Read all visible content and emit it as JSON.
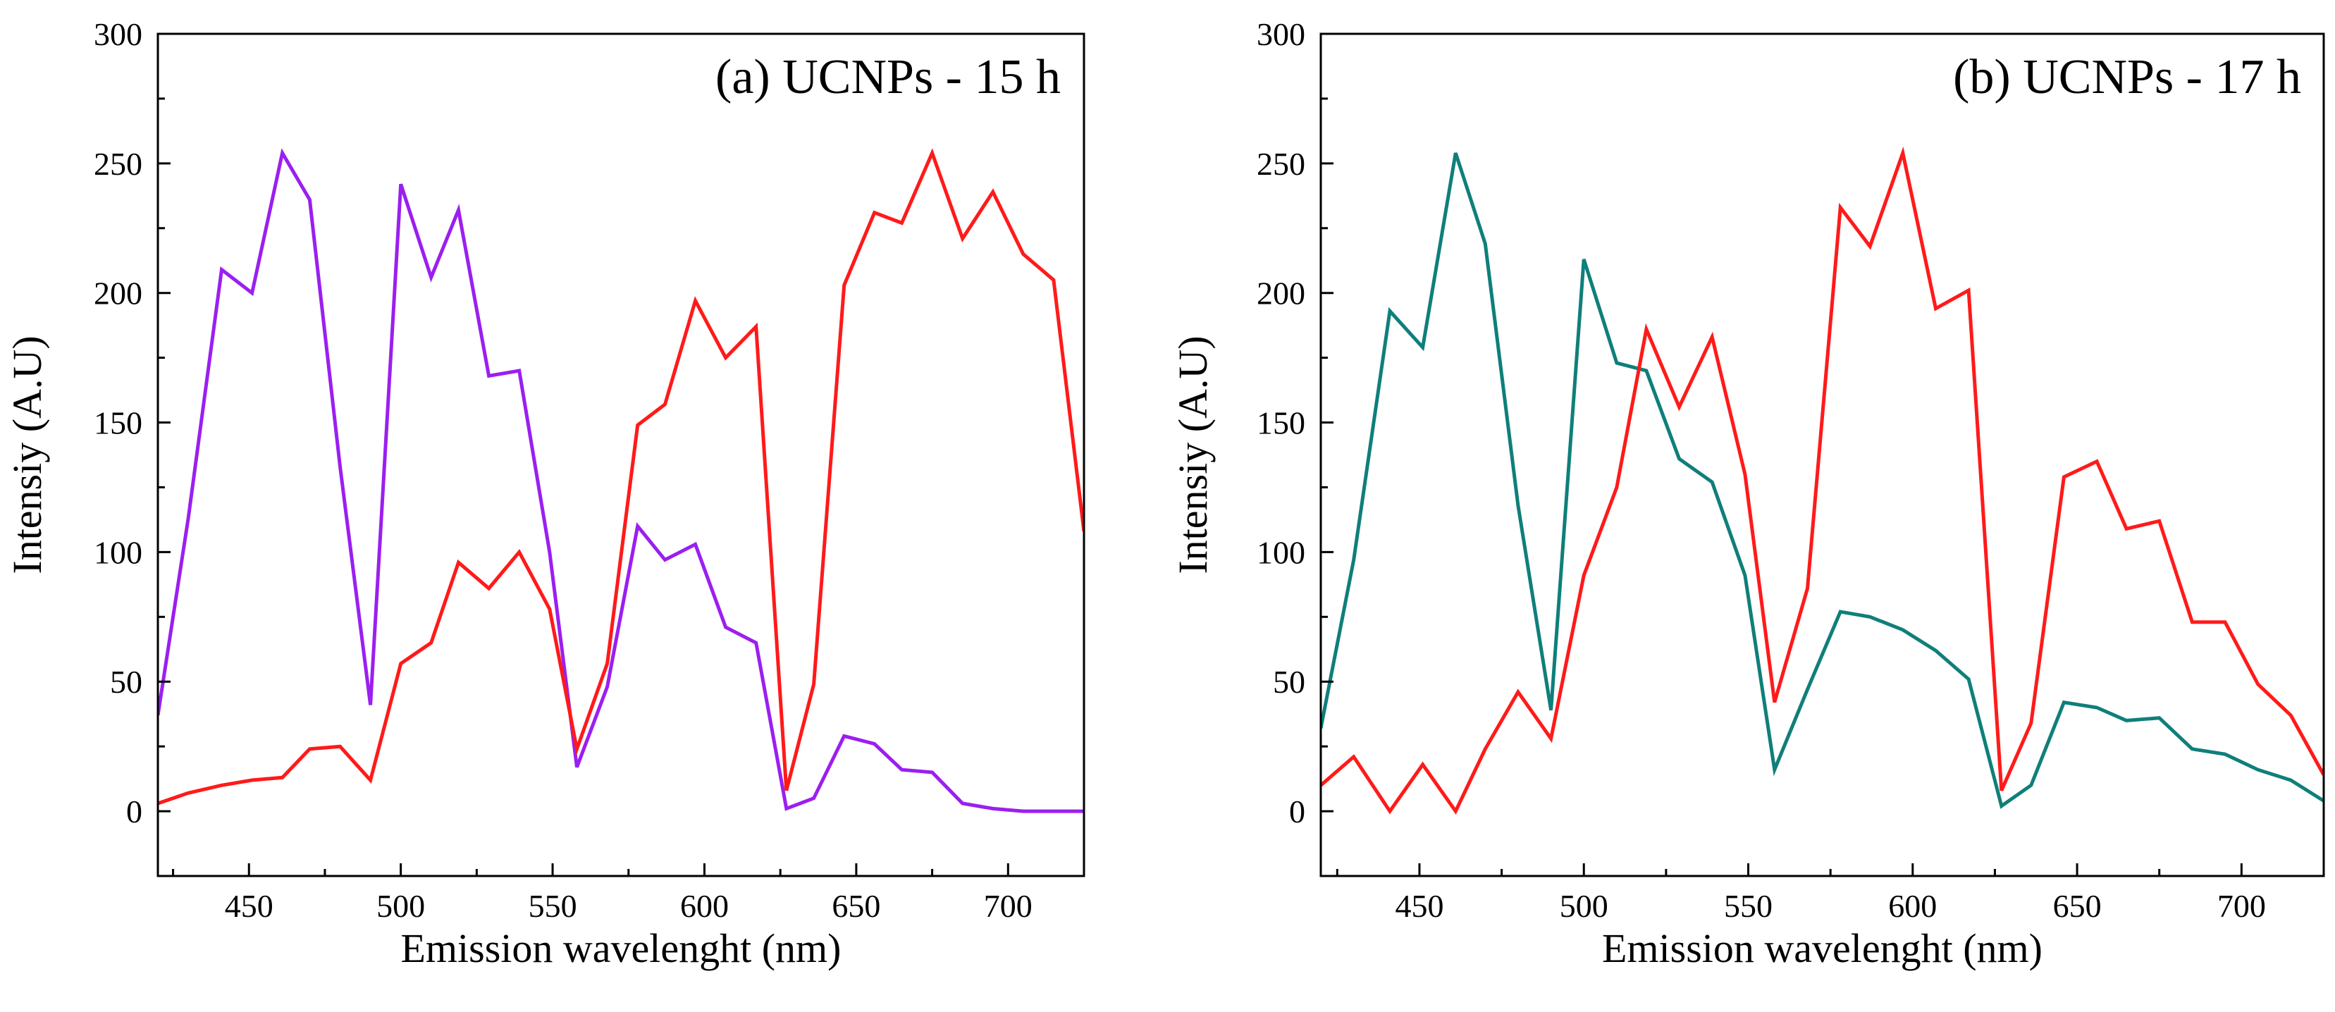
{
  "chart_data": [
    {
      "type": "line",
      "title": "(a) UCNPs - 15 h",
      "xlabel": "Emission wavelenght (nm)",
      "ylabel": "Intensiy (A.U)",
      "xlim": [
        420,
        725
      ],
      "ylim": [
        -25,
        300
      ],
      "xticks": [
        450,
        500,
        550,
        600,
        650,
        700
      ],
      "yticks": [
        0,
        50,
        100,
        150,
        200,
        250,
        300
      ],
      "tick_labels_x": [
        "450",
        "500",
        "550",
        "600",
        "650",
        "700"
      ],
      "tick_labels_y": [
        "0",
        "50",
        "100",
        "150",
        "200",
        "250",
        "300"
      ],
      "series": [
        {
          "name": "violet",
          "color": "#9b1ff0",
          "x": [
            420,
            430,
            441,
            451,
            461,
            470,
            480,
            490,
            500,
            510,
            519,
            529,
            539,
            549,
            558,
            568,
            578,
            587,
            597,
            607,
            617,
            627,
            636,
            646,
            656,
            665,
            675,
            685,
            695,
            705,
            715,
            725
          ],
          "y": [
            37,
            113,
            209,
            200,
            254,
            236,
            133,
            41,
            242,
            206,
            232,
            168,
            170,
            100,
            17,
            48,
            110,
            97,
            103,
            71,
            65,
            1,
            5,
            29,
            26,
            16,
            15,
            3,
            1,
            0,
            0,
            0
          ]
        },
        {
          "name": "red",
          "color": "#ff1a1a",
          "x": [
            420,
            430,
            441,
            451,
            461,
            470,
            480,
            490,
            500,
            510,
            519,
            529,
            539,
            549,
            558,
            568,
            578,
            587,
            597,
            607,
            617,
            627,
            636,
            646,
            656,
            665,
            675,
            685,
            695,
            705,
            715,
            725
          ],
          "y": [
            3,
            7,
            10,
            12,
            13,
            24,
            25,
            12,
            57,
            65,
            96,
            86,
            100,
            78,
            24,
            57,
            149,
            157,
            197,
            175,
            187,
            8,
            49,
            203,
            231,
            227,
            254,
            221,
            239,
            215,
            205,
            108
          ]
        }
      ]
    },
    {
      "type": "line",
      "title": "(b) UCNPs - 17 h",
      "xlabel": "Emission wavelenght (nm)",
      "ylabel": "Intensiy (A.U)",
      "xlim": [
        420,
        725
      ],
      "ylim": [
        -25,
        300
      ],
      "xticks": [
        450,
        500,
        550,
        600,
        650,
        700
      ],
      "yticks": [
        0,
        50,
        100,
        150,
        200,
        250,
        300
      ],
      "tick_labels_x": [
        "450",
        "500",
        "550",
        "600",
        "650",
        "700"
      ],
      "tick_labels_y": [
        "0",
        "50",
        "100",
        "150",
        "200",
        "250",
        "300"
      ],
      "series": [
        {
          "name": "teal",
          "color": "#0f7f7a",
          "x": [
            420,
            430,
            441,
            451,
            461,
            470,
            480,
            490,
            500,
            510,
            519,
            529,
            539,
            549,
            558,
            568,
            578,
            587,
            597,
            607,
            617,
            627,
            636,
            646,
            656,
            665,
            675,
            685,
            695,
            705,
            715,
            725
          ],
          "y": [
            32,
            97,
            193,
            179,
            254,
            219,
            118,
            39,
            213,
            173,
            170,
            136,
            127,
            91,
            16,
            47,
            77,
            75,
            70,
            62,
            51,
            2,
            10,
            42,
            40,
            35,
            36,
            24,
            22,
            16,
            12,
            4
          ]
        },
        {
          "name": "red",
          "color": "#ff1a1a",
          "x": [
            420,
            430,
            441,
            451,
            461,
            470,
            480,
            490,
            500,
            510,
            519,
            529,
            539,
            549,
            558,
            568,
            578,
            587,
            597,
            607,
            617,
            627,
            636,
            646,
            656,
            665,
            675,
            685,
            695,
            705,
            715,
            725
          ],
          "y": [
            10,
            21,
            0,
            18,
            0,
            24,
            46,
            28,
            91,
            125,
            186,
            156,
            183,
            130,
            42,
            86,
            233,
            218,
            254,
            194,
            201,
            8,
            34,
            129,
            135,
            109,
            112,
            73,
            73,
            49,
            37,
            14
          ]
        }
      ]
    }
  ]
}
